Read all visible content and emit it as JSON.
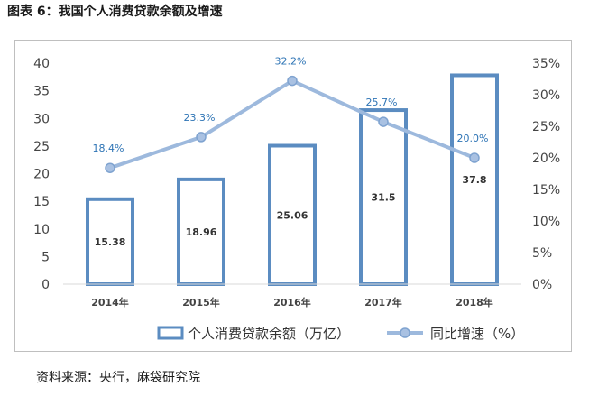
{
  "title": "图表 6：我国个人消费贷款余额及增速",
  "source": "资料来源：央行，麻袋研究院",
  "chart_data": {
    "type": "bar",
    "categories": [
      "2014年",
      "2015年",
      "2016年",
      "2017年",
      "2018年"
    ],
    "series": [
      {
        "name": "个人消费贷款余额（万亿）",
        "type": "bar",
        "axis": "left",
        "values": [
          15.38,
          18.96,
          25.06,
          31.5,
          37.8
        ],
        "labels": [
          "15.38",
          "18.96",
          "25.06",
          "31.5",
          "37.8"
        ],
        "color": "#5b8cc1"
      },
      {
        "name": "同比增速（%）",
        "type": "line",
        "axis": "right",
        "values": [
          18.4,
          23.3,
          32.2,
          25.7,
          20.0
        ],
        "labels": [
          "18.4%",
          "23.3%",
          "32.2%",
          "25.7%",
          "20.0%"
        ],
        "color": "#9db9dd"
      }
    ],
    "y_left": {
      "min": 0,
      "max": 40,
      "ticks": [
        "0",
        "5",
        "10",
        "15",
        "20",
        "25",
        "30",
        "35",
        "40"
      ]
    },
    "y_right": {
      "min": 0,
      "max": 35,
      "ticks": [
        "0%",
        "5%",
        "10%",
        "15%",
        "20%",
        "25%",
        "30%",
        "35%"
      ]
    },
    "grid": false,
    "legend_position": "bottom"
  }
}
